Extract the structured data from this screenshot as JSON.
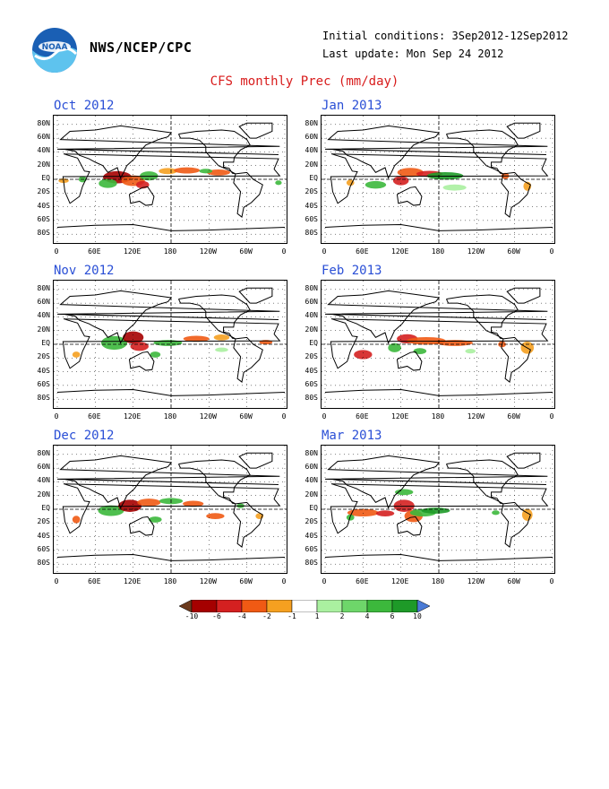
{
  "header": {
    "org": "NWS/NCEP/CPC",
    "initial_conditions": "Initial conditions: 3Sep2012-12Sep2012",
    "last_update": "Last update: Mon Sep 24 2012",
    "title": "CFS monthly Prec (mm/day)"
  },
  "panels": [
    {
      "title": "Oct 2012"
    },
    {
      "title": "Jan 2013"
    },
    {
      "title": "Nov 2012"
    },
    {
      "title": "Feb 2013"
    },
    {
      "title": "Dec 2012"
    },
    {
      "title": "Mar 2013"
    }
  ],
  "lat_labels": [
    "80N",
    "60N",
    "40N",
    "20N",
    "EQ",
    "20S",
    "40S",
    "60S",
    "80S"
  ],
  "lon_labels": [
    "0",
    "60E",
    "120E",
    "180",
    "120W",
    "60W",
    "0"
  ],
  "colorbar": {
    "values": [
      "-10",
      "-6",
      "-4",
      "-2",
      "-1",
      "1",
      "2",
      "4",
      "6",
      "10"
    ],
    "colors": [
      "#6b3a1e",
      "#a50000",
      "#d42020",
      "#f05a14",
      "#f5a020",
      "#ffffff",
      "#aaf0a0",
      "#6ed66a",
      "#3cb83c",
      "#1e9a28",
      "#4b7bd6"
    ]
  }
}
